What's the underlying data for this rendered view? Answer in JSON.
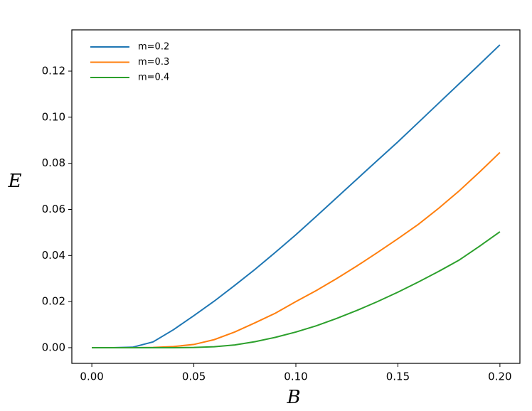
{
  "chart_data": {
    "type": "line",
    "x_label": "B",
    "y_label": "E",
    "x": [
      0,
      0.01,
      0.02,
      0.03,
      0.04,
      0.05,
      0.06,
      0.07,
      0.08,
      0.09,
      0.1,
      0.11,
      0.12,
      0.13,
      0.14,
      0.15,
      0.16,
      0.17,
      0.18,
      0.19,
      0.2
    ],
    "series": [
      {
        "name": "m=0.2",
        "color": "#1f77b4",
        "values": [
          0,
          0,
          0.0002,
          0.0025,
          0.0078,
          0.0139,
          0.0202,
          0.027,
          0.034,
          0.0414,
          0.049,
          0.057,
          0.0651,
          0.0732,
          0.0813,
          0.0893,
          0.0977,
          0.1061,
          0.1145,
          0.1229,
          0.1314
        ]
      },
      {
        "name": "m=0.3",
        "color": "#ff7f0e",
        "values": [
          0,
          0,
          0,
          0.0001,
          0.0005,
          0.0014,
          0.0035,
          0.0068,
          0.0108,
          0.015,
          0.02,
          0.0248,
          0.03,
          0.0355,
          0.0413,
          0.0473,
          0.0535,
          0.0605,
          0.068,
          0.0762,
          0.0847
        ]
      },
      {
        "name": "m=0.4",
        "color": "#2ca02c",
        "values": [
          0,
          0,
          0,
          0,
          0,
          0.0001,
          0.0004,
          0.0012,
          0.0026,
          0.0045,
          0.0068,
          0.0095,
          0.0127,
          0.0162,
          0.02,
          0.0241,
          0.0285,
          0.0331,
          0.038,
          0.044,
          0.0503
        ]
      }
    ],
    "xlim": [
      -0.0098,
      0.2098
    ],
    "ylim": [
      -0.0068,
      0.1379
    ],
    "xticks": [
      {
        "value": 0,
        "label": "0.00"
      },
      {
        "value": 0.05,
        "label": "0.05"
      },
      {
        "value": 0.1,
        "label": "0.10"
      },
      {
        "value": 0.15,
        "label": "0.15"
      },
      {
        "value": 0.2,
        "label": "0.20"
      }
    ],
    "yticks": [
      {
        "value": 0,
        "label": "0.00"
      },
      {
        "value": 0.02,
        "label": "0.02"
      },
      {
        "value": 0.04,
        "label": "0.04"
      },
      {
        "value": 0.06,
        "label": "0.06"
      },
      {
        "value": 0.08,
        "label": "0.08"
      },
      {
        "value": 0.1,
        "label": "0.10"
      },
      {
        "value": 0.12,
        "label": "0.12"
      }
    ],
    "legend": "upper left",
    "grid": false
  }
}
